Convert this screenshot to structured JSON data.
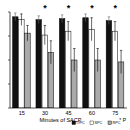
{
  "chart_data": {
    "type": "bar",
    "x_label": "Minutes of SACP",
    "categories": [
      "15",
      "30",
      "45",
      "60",
      "75"
    ],
    "series": [
      {
        "name": "OPC",
        "color": "#111111",
        "values": [
          95,
          92,
          93,
          94,
          91
        ],
        "errors": [
          4,
          4,
          4,
          4,
          4
        ]
      },
      {
        "name": "SPC",
        "color": "#ffffff",
        "values": [
          92,
          76,
          80,
          82,
          80
        ],
        "errors": [
          6,
          10,
          10,
          12,
          10
        ]
      },
      {
        "name": "RPC",
        "color": "#aaaaaa",
        "values": [
          78,
          58,
          50,
          50,
          48
        ],
        "errors": [
          8,
          12,
          12,
          12,
          12
        ]
      }
    ],
    "annotations": [
      {
        "label": "*",
        "category": "30"
      },
      {
        "label": "*",
        "category": "45"
      },
      {
        "label": "*",
        "category": "60"
      },
      {
        "label": "*",
        "category": "75"
      },
      {
        "label": "* P"
      }
    ],
    "ylim": [
      0,
      100
    ],
    "yticks": [
      0,
      25,
      50,
      75,
      100
    ],
    "tick_labels": "x",
    "legend": "bottom-right"
  }
}
